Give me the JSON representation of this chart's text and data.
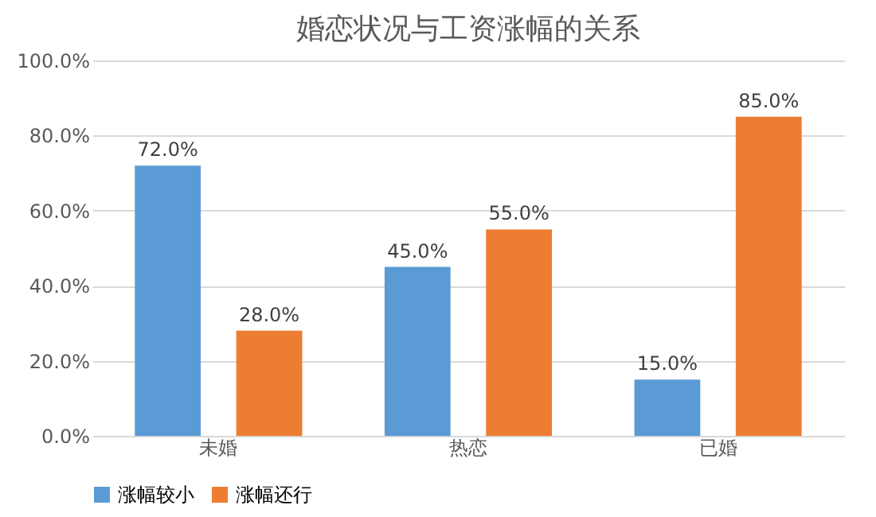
{
  "chart_data": {
    "type": "bar",
    "title": "婚恋状况与工资涨幅的关系",
    "categories": [
      "未婚",
      "热恋",
      "已婚"
    ],
    "series": [
      {
        "name": "涨幅较小",
        "color": "#5b9bd5",
        "values": [
          72,
          45,
          15
        ],
        "value_labels": [
          "72.0%",
          "45.0%",
          "15.0%"
        ]
      },
      {
        "name": "涨幅还行",
        "color": "#ed7d31",
        "values": [
          28,
          55,
          85
        ],
        "value_labels": [
          "28.0%",
          "55.0%",
          "85.0%"
        ]
      }
    ],
    "ylim": [
      0,
      100
    ],
    "yticks": [
      {
        "value": 0,
        "label": "0.0%"
      },
      {
        "value": 20,
        "label": "20.0%"
      },
      {
        "value": 40,
        "label": "40.0%"
      },
      {
        "value": 60,
        "label": "60.0%"
      },
      {
        "value": 80,
        "label": "80.0%"
      },
      {
        "value": 100,
        "label": "100.0%"
      }
    ],
    "grid": "y",
    "legend": "bottom"
  }
}
